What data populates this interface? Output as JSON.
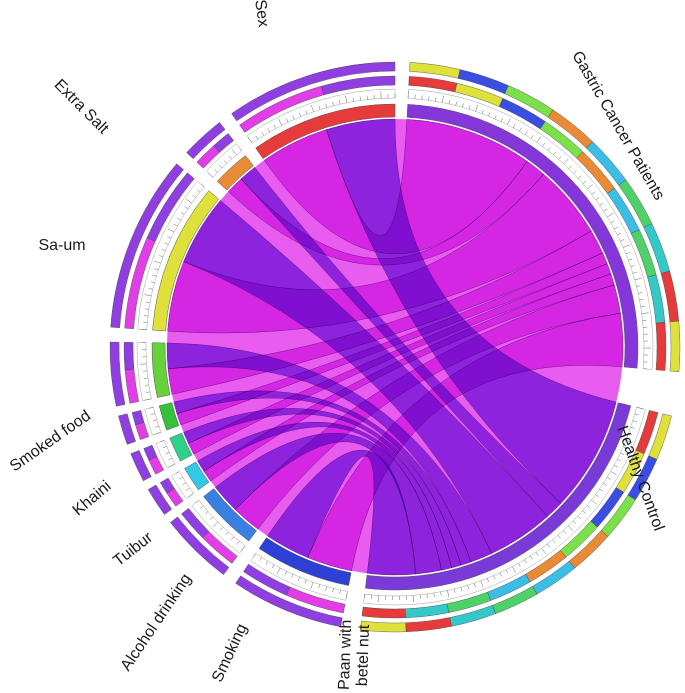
{
  "colors": {
    "magenta": "#e23ee8",
    "purple": "#8f3fe0",
    "ribbon_magenta": "#e54ff0",
    "ribbon_purple": "#8a45e6",
    "inner_bg": "#e85cf0",
    "outer_palette": [
      "#e63b3b",
      "#e0e03a",
      "#3b4ee3",
      "#7be04a",
      "#e88a36",
      "#3bbde6",
      "#4fd16a",
      "#35c8c8"
    ]
  },
  "diagram": {
    "type": "chord",
    "segments": [
      {
        "id": "sex",
        "label": "Sex",
        "color": "#e63b3b",
        "value": 312
      },
      {
        "id": "extra-salt",
        "label": "Extra Salt",
        "color": "#e88a36",
        "value": 50
      },
      {
        "id": "sa-um",
        "label": "Sa-um",
        "color": "#e0e03a",
        "value": 180
      },
      {
        "id": "smoked-food",
        "label": "Smoked food",
        "color": "#66d13a",
        "value": 60
      },
      {
        "id": "khaini",
        "label": "Khaini",
        "color": "#35c23a",
        "value": 28
      },
      {
        "id": "tuibur",
        "label": "Tuibur",
        "color": "#2fd08a",
        "value": 26
      },
      {
        "id": "alcohol",
        "label": "Alcohol drinking",
        "color": "#35c8e6",
        "value": 28
      },
      {
        "id": "smoking",
        "label": "Smoking",
        "color": "#3b7fe3",
        "value": 70
      },
      {
        "id": "paan",
        "label": "Paan with\nbetel nut",
        "color": "#2e3fd6",
        "value": 130
      },
      {
        "id": "hc",
        "label": "Healthy Control",
        "color": "#7a3ad8",
        "value": 560
      },
      {
        "id": "gc",
        "label": "Gastric Cancer Patients",
        "color": "#8436d8",
        "value": 540
      }
    ],
    "ribbons": [
      {
        "from": "sex",
        "to": "gc",
        "color": "magenta"
      },
      {
        "from": "sex",
        "to": "hc",
        "color": "purple"
      },
      {
        "from": "extra-salt",
        "to": "gc",
        "color": "magenta"
      },
      {
        "from": "extra-salt",
        "to": "hc",
        "color": "purple"
      },
      {
        "from": "sa-um",
        "to": "gc",
        "color": "magenta"
      },
      {
        "from": "sa-um",
        "to": "hc",
        "color": "purple"
      },
      {
        "from": "smoked-food",
        "to": "gc",
        "color": "magenta"
      },
      {
        "from": "smoked-food",
        "to": "hc",
        "color": "purple"
      },
      {
        "from": "khaini",
        "to": "gc",
        "color": "magenta"
      },
      {
        "from": "khaini",
        "to": "hc",
        "color": "purple"
      },
      {
        "from": "tuibur",
        "to": "gc",
        "color": "magenta"
      },
      {
        "from": "tuibur",
        "to": "hc",
        "color": "purple"
      },
      {
        "from": "alcohol",
        "to": "gc",
        "color": "magenta"
      },
      {
        "from": "alcohol",
        "to": "hc",
        "color": "purple"
      },
      {
        "from": "smoking",
        "to": "gc",
        "color": "magenta"
      },
      {
        "from": "smoking",
        "to": "hc",
        "color": "purple"
      },
      {
        "from": "paan",
        "to": "gc",
        "color": "magenta"
      },
      {
        "from": "paan",
        "to": "hc",
        "color": "purple"
      }
    ]
  }
}
